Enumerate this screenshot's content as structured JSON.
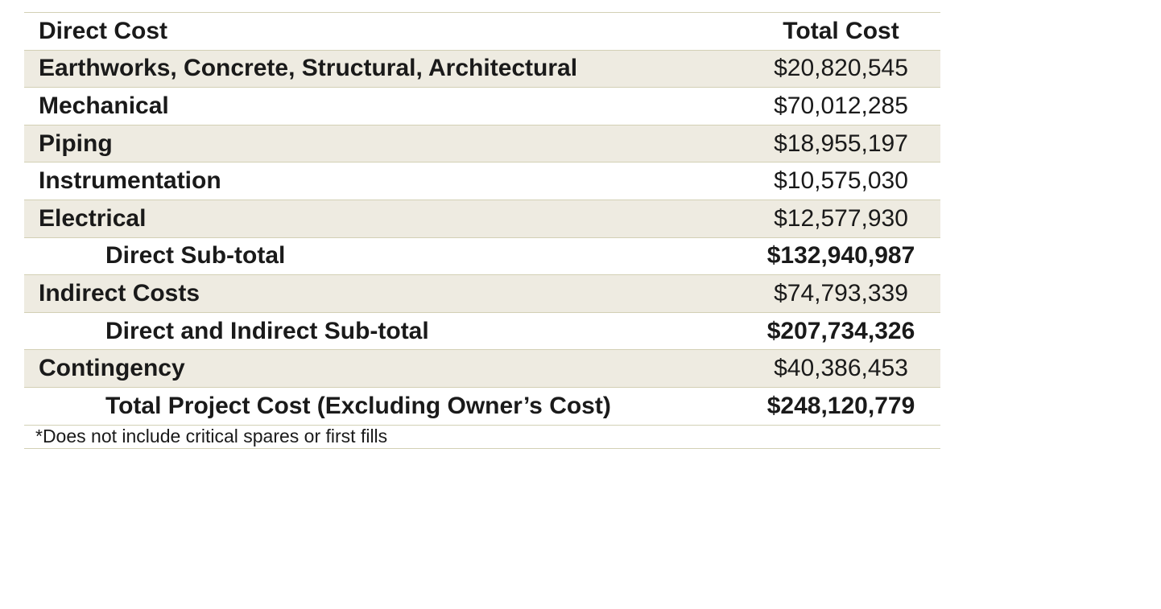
{
  "table": {
    "header": {
      "label": "Direct Cost",
      "value": "Total Cost"
    },
    "rows": [
      {
        "label": "Earthworks, Concrete, Structural, Architectural",
        "value": "$20,820,545"
      },
      {
        "label": "Mechanical",
        "value": "$70,012,285"
      },
      {
        "label": "Piping",
        "value": "$18,955,197"
      },
      {
        "label": "Instrumentation",
        "value": "$10,575,030"
      },
      {
        "label": "Electrical",
        "value": "$12,577,930"
      },
      {
        "label": "Direct Sub-total",
        "value": "$132,940,987"
      },
      {
        "label": "Indirect Costs",
        "value": "$74,793,339"
      },
      {
        "label": "Direct and Indirect Sub-total",
        "value": "$207,734,326"
      },
      {
        "label": "Contingency",
        "value": "$40,386,453"
      },
      {
        "label": "Total Project Cost (Excluding Owner’s Cost)",
        "value": "$248,120,779"
      }
    ],
    "footnote": "*Does not include critical spares or first fills"
  },
  "colors": {
    "row_shade": "#eeebe1",
    "rule": "#d3d0b5",
    "text": "#1a1a1a"
  }
}
